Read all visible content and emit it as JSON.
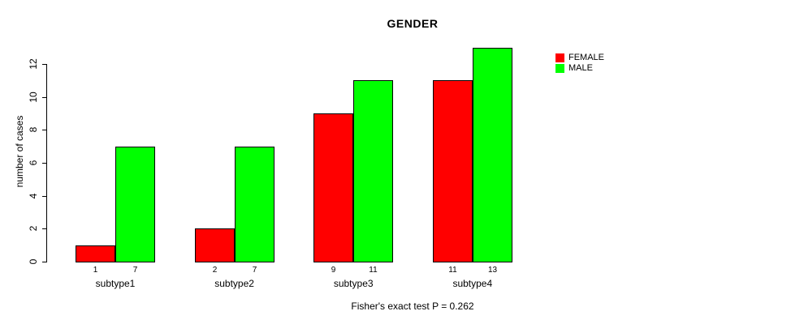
{
  "title": "GENDER",
  "ylabel": "number of cases",
  "footer": "Fisher's exact test P = 0.262",
  "legend": [
    {
      "label": "FEMALE",
      "color": "#ff0000"
    },
    {
      "label": "MALE",
      "color": "#00ff00"
    }
  ],
  "chart_data": {
    "type": "bar",
    "title": "GENDER",
    "xlabel": "",
    "ylabel": "number of cases",
    "categories": [
      "subtype1",
      "subtype2",
      "subtype3",
      "subtype4"
    ],
    "series": [
      {
        "name": "FEMALE",
        "color": "#ff0000",
        "values": [
          1,
          2,
          9,
          11
        ]
      },
      {
        "name": "MALE",
        "color": "#00ff00",
        "values": [
          7,
          7,
          11,
          13
        ]
      }
    ],
    "bar_value_labels": [
      [
        "1",
        "7"
      ],
      [
        "2",
        "7"
      ],
      [
        "9",
        "11"
      ],
      [
        "11",
        "13"
      ]
    ],
    "yticks": [
      0,
      2,
      4,
      6,
      8,
      10,
      12
    ],
    "ylim": [
      0,
      13
    ],
    "grid": false,
    "legend_position": "top-right",
    "annotation": "Fisher's exact test P = 0.262"
  }
}
